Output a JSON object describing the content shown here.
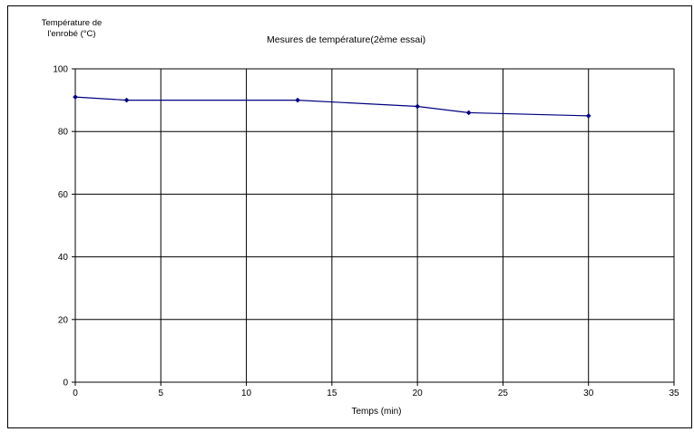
{
  "chart_data": {
    "type": "line",
    "title": "Mesures de température(2ème essai)",
    "ylabel_line1": "Température de",
    "ylabel_line2": "l'enrobé (°C)",
    "xlabel": "Temps (min)",
    "xlim": [
      0,
      35
    ],
    "ylim": [
      0,
      100
    ],
    "xticks": [
      0,
      5,
      10,
      15,
      20,
      25,
      30,
      35
    ],
    "yticks": [
      0,
      20,
      40,
      60,
      80,
      100
    ],
    "grid": true,
    "legend": "none",
    "series": [
      {
        "color": "#000080",
        "marker": "diamond",
        "x": [
          0,
          3,
          13,
          20,
          23,
          30
        ],
        "y": [
          91,
          90,
          90,
          88,
          86,
          85
        ]
      }
    ]
  }
}
